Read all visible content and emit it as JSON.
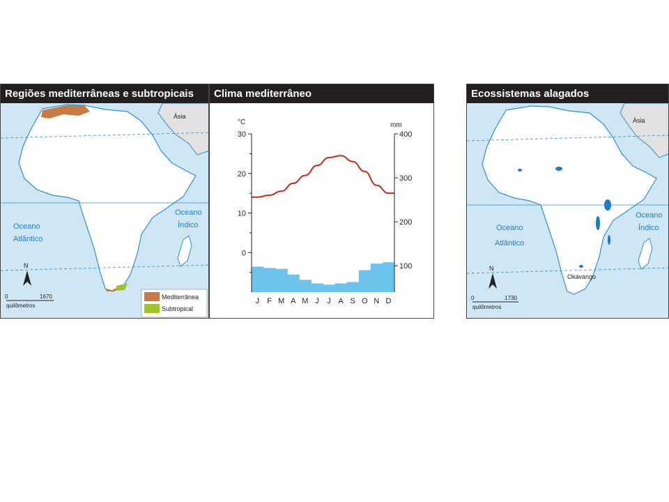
{
  "colors": {
    "ocean": "#cfe6f4",
    "coast": "#2f8fcf",
    "asia": "#e2e2e2",
    "land": "#ffffff",
    "mediterranea": "#c87a45",
    "subtropical": "#9bc52b",
    "temperature_line": "#c8281e",
    "precipitation_bars": "#6cc4ec",
    "wetland": "#1f78c8"
  },
  "panel1": {
    "title": "Regiões mediterrâneas e subtropicais",
    "asia_label": "Ásia",
    "ocean_indico": [
      "Oceano",
      "Índico"
    ],
    "ocean_atlantico": [
      "Oceano",
      "Atlântico"
    ],
    "north": "N",
    "scale": {
      "zero": "0",
      "max": "1670",
      "unit": "quilômetros"
    },
    "legend": [
      {
        "name": "Mediterrânea",
        "color_key": "mediterranea"
      },
      {
        "name": "Subtropical",
        "color_key": "subtropical"
      }
    ]
  },
  "panel2": {
    "title": "Clima mediterrâneo",
    "chart_data": {
      "type": "bar+line",
      "title": "Clima mediterrâneo",
      "categories": [
        "J",
        "F",
        "M",
        "A",
        "M",
        "J",
        "J",
        "A",
        "S",
        "O",
        "N",
        "D"
      ],
      "left_axis": {
        "unit": "°C",
        "ticks": [
          0,
          10,
          20,
          30
        ],
        "range": [
          -10,
          30
        ]
      },
      "right_axis": {
        "unit": "mm",
        "ticks": [
          100,
          200,
          300,
          400
        ],
        "range": [
          40,
          400
        ]
      },
      "series": [
        {
          "kind": "line",
          "axis": "left",
          "values": [
            14,
            14.5,
            15.5,
            17.5,
            19.5,
            22,
            24,
            24.5,
            23,
            20.5,
            17,
            15
          ]
        },
        {
          "kind": "bar",
          "axis": "right",
          "values": [
            98,
            95,
            93,
            80,
            68,
            60,
            57,
            60,
            63,
            90,
            105,
            108
          ]
        }
      ]
    }
  },
  "panel3": {
    "title": "Ecossistemas alagados",
    "asia_label": "Ásia",
    "ocean_indico": [
      "Oceano",
      "Índico"
    ],
    "ocean_atlantico": [
      "Oceano",
      "Atlântico"
    ],
    "okavango": "Okavango",
    "north": "N",
    "scale": {
      "zero": "0",
      "max": "1730",
      "unit": "quilômetros"
    }
  }
}
